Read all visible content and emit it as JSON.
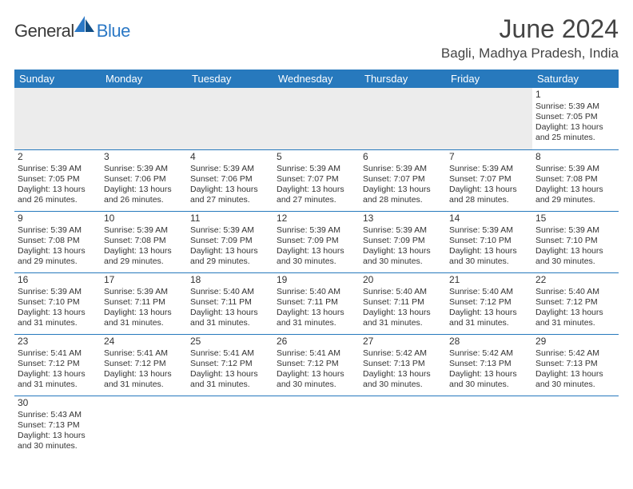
{
  "logo": {
    "text1": "General",
    "text2": "Blue"
  },
  "title": "June 2024",
  "location": "Bagli, Madhya Pradesh, India",
  "colors": {
    "header_bg": "#2779bd",
    "header_text": "#ffffff",
    "border": "#2779bd",
    "empty_bg": "#ececec",
    "logo_blue": "#2b78c5",
    "body_text": "#333333"
  },
  "daysOfWeek": [
    "Sunday",
    "Monday",
    "Tuesday",
    "Wednesday",
    "Thursday",
    "Friday",
    "Saturday"
  ],
  "grid": {
    "startOffset": 6,
    "daysInMonth": 30
  },
  "days": {
    "1": {
      "sunrise": "5:39 AM",
      "sunset": "7:05 PM",
      "daylight": "13 hours and 25 minutes."
    },
    "2": {
      "sunrise": "5:39 AM",
      "sunset": "7:05 PM",
      "daylight": "13 hours and 26 minutes."
    },
    "3": {
      "sunrise": "5:39 AM",
      "sunset": "7:06 PM",
      "daylight": "13 hours and 26 minutes."
    },
    "4": {
      "sunrise": "5:39 AM",
      "sunset": "7:06 PM",
      "daylight": "13 hours and 27 minutes."
    },
    "5": {
      "sunrise": "5:39 AM",
      "sunset": "7:07 PM",
      "daylight": "13 hours and 27 minutes."
    },
    "6": {
      "sunrise": "5:39 AM",
      "sunset": "7:07 PM",
      "daylight": "13 hours and 28 minutes."
    },
    "7": {
      "sunrise": "5:39 AM",
      "sunset": "7:07 PM",
      "daylight": "13 hours and 28 minutes."
    },
    "8": {
      "sunrise": "5:39 AM",
      "sunset": "7:08 PM",
      "daylight": "13 hours and 29 minutes."
    },
    "9": {
      "sunrise": "5:39 AM",
      "sunset": "7:08 PM",
      "daylight": "13 hours and 29 minutes."
    },
    "10": {
      "sunrise": "5:39 AM",
      "sunset": "7:08 PM",
      "daylight": "13 hours and 29 minutes."
    },
    "11": {
      "sunrise": "5:39 AM",
      "sunset": "7:09 PM",
      "daylight": "13 hours and 29 minutes."
    },
    "12": {
      "sunrise": "5:39 AM",
      "sunset": "7:09 PM",
      "daylight": "13 hours and 30 minutes."
    },
    "13": {
      "sunrise": "5:39 AM",
      "sunset": "7:09 PM",
      "daylight": "13 hours and 30 minutes."
    },
    "14": {
      "sunrise": "5:39 AM",
      "sunset": "7:10 PM",
      "daylight": "13 hours and 30 minutes."
    },
    "15": {
      "sunrise": "5:39 AM",
      "sunset": "7:10 PM",
      "daylight": "13 hours and 30 minutes."
    },
    "16": {
      "sunrise": "5:39 AM",
      "sunset": "7:10 PM",
      "daylight": "13 hours and 31 minutes."
    },
    "17": {
      "sunrise": "5:39 AM",
      "sunset": "7:11 PM",
      "daylight": "13 hours and 31 minutes."
    },
    "18": {
      "sunrise": "5:40 AM",
      "sunset": "7:11 PM",
      "daylight": "13 hours and 31 minutes."
    },
    "19": {
      "sunrise": "5:40 AM",
      "sunset": "7:11 PM",
      "daylight": "13 hours and 31 minutes."
    },
    "20": {
      "sunrise": "5:40 AM",
      "sunset": "7:11 PM",
      "daylight": "13 hours and 31 minutes."
    },
    "21": {
      "sunrise": "5:40 AM",
      "sunset": "7:12 PM",
      "daylight": "13 hours and 31 minutes."
    },
    "22": {
      "sunrise": "5:40 AM",
      "sunset": "7:12 PM",
      "daylight": "13 hours and 31 minutes."
    },
    "23": {
      "sunrise": "5:41 AM",
      "sunset": "7:12 PM",
      "daylight": "13 hours and 31 minutes."
    },
    "24": {
      "sunrise": "5:41 AM",
      "sunset": "7:12 PM",
      "daylight": "13 hours and 31 minutes."
    },
    "25": {
      "sunrise": "5:41 AM",
      "sunset": "7:12 PM",
      "daylight": "13 hours and 31 minutes."
    },
    "26": {
      "sunrise": "5:41 AM",
      "sunset": "7:12 PM",
      "daylight": "13 hours and 30 minutes."
    },
    "27": {
      "sunrise": "5:42 AM",
      "sunset": "7:13 PM",
      "daylight": "13 hours and 30 minutes."
    },
    "28": {
      "sunrise": "5:42 AM",
      "sunset": "7:13 PM",
      "daylight": "13 hours and 30 minutes."
    },
    "29": {
      "sunrise": "5:42 AM",
      "sunset": "7:13 PM",
      "daylight": "13 hours and 30 minutes."
    },
    "30": {
      "sunrise": "5:43 AM",
      "sunset": "7:13 PM",
      "daylight": "13 hours and 30 minutes."
    }
  },
  "labels": {
    "sunrise": "Sunrise: ",
    "sunset": "Sunset: ",
    "daylight": "Daylight: "
  }
}
